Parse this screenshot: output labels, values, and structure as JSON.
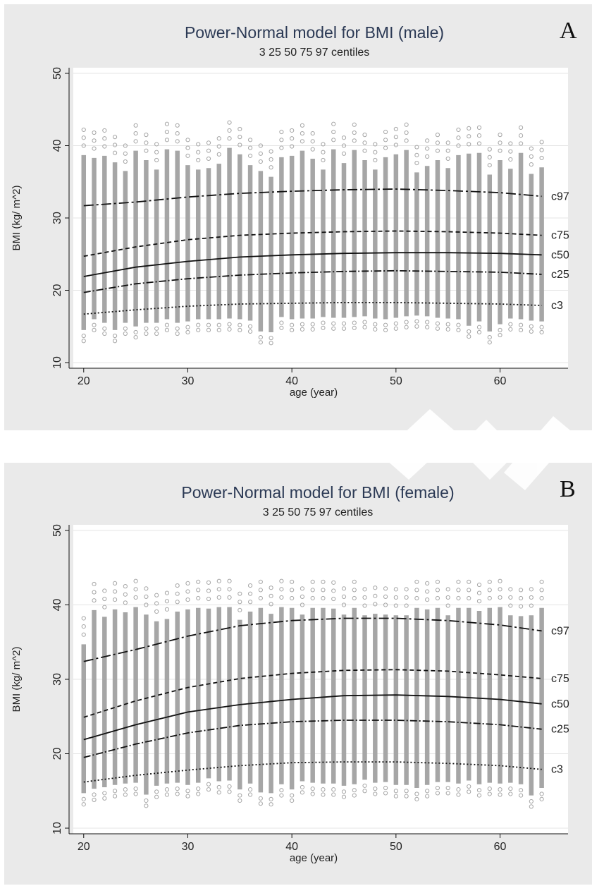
{
  "chart_data": [
    {
      "type": "scatter",
      "panel_letter": "A",
      "title": "Power-Normal model for BMI (male)",
      "subtitle": "3 25 50 75 97 centiles",
      "xlabel": "age (year)",
      "ylabel": "BMI (kg/ m^2)",
      "xlim": [
        19,
        64.5
      ],
      "ylim": [
        10,
        50
      ],
      "xticks": [
        20,
        30,
        40,
        50,
        60
      ],
      "yticks": [
        10,
        20,
        30,
        40,
        50
      ],
      "grid": true,
      "scatter_color": "#a6a6a6",
      "scatter": {
        "x_start": 20,
        "x_end": 64,
        "low": [
          13,
          14.5,
          14,
          13,
          14,
          13.5,
          14,
          14,
          14.5,
          14,
          14.2,
          14.5,
          14.5,
          14.5,
          14.6,
          14.5,
          14.3,
          12.8,
          12.7,
          14.8,
          14.5,
          14.6,
          14.6,
          14.8,
          14.7,
          14.7,
          14.8,
          14.9,
          14.6,
          14.5,
          14.7,
          14.9,
          15.0,
          14.9,
          14.7,
          14.6,
          14.5,
          13.6,
          14.2,
          12.8,
          13.8,
          14.6,
          14.5,
          14.3,
          14.2
        ],
        "high": [
          42.2,
          41.8,
          42.1,
          41.2,
          40,
          42.8,
          41.5,
          40.2,
          43,
          42.8,
          40.8,
          40.2,
          40.4,
          41,
          43.2,
          42.3,
          40.8,
          40,
          39.2,
          41.9,
          42.1,
          42.8,
          41.7,
          40.2,
          43,
          41.1,
          42.9,
          41.5,
          40.2,
          41.9,
          42.3,
          42.9,
          39.8,
          40.7,
          41.5,
          40.4,
          42.2,
          42.4,
          42.5,
          39.5,
          41.5,
          40.3,
          42.5,
          39.6,
          40.5
        ]
      },
      "centiles": [
        {
          "name": "c97",
          "x": [
            20,
            25,
            30,
            35,
            40,
            45,
            50,
            55,
            60,
            64
          ],
          "y": [
            31.7,
            32.2,
            32.9,
            33.4,
            33.7,
            33.9,
            34.0,
            33.8,
            33.5,
            33.0
          ]
        },
        {
          "name": "c75",
          "x": [
            20,
            25,
            30,
            35,
            40,
            45,
            50,
            55,
            60,
            64
          ],
          "y": [
            24.7,
            26.0,
            27.0,
            27.6,
            27.9,
            28.1,
            28.2,
            28.1,
            27.9,
            27.6
          ]
        },
        {
          "name": "c50",
          "x": [
            20,
            25,
            30,
            35,
            40,
            45,
            50,
            55,
            60,
            64
          ],
          "y": [
            21.9,
            23.2,
            24.0,
            24.6,
            24.9,
            25.1,
            25.2,
            25.2,
            25.1,
            24.9
          ]
        },
        {
          "name": "c25",
          "x": [
            20,
            25,
            30,
            35,
            40,
            45,
            50,
            55,
            60,
            64
          ],
          "y": [
            19.7,
            20.9,
            21.6,
            22.1,
            22.4,
            22.6,
            22.7,
            22.6,
            22.5,
            22.2
          ]
        },
        {
          "name": "c3",
          "x": [
            20,
            25,
            30,
            35,
            40,
            45,
            50,
            55,
            60,
            64
          ],
          "y": [
            16.7,
            17.3,
            17.8,
            18.1,
            18.2,
            18.3,
            18.3,
            18.2,
            18.1,
            17.9
          ]
        }
      ]
    },
    {
      "type": "scatter",
      "panel_letter": "B",
      "title": "Power-Normal model for BMI (female)",
      "subtitle": "3 25 50 75 97 centiles",
      "xlabel": "age (year)",
      "ylabel": "BMI (kg/ m^2)",
      "xlim": [
        19,
        64.5
      ],
      "ylim": [
        10,
        50
      ],
      "xticks": [
        20,
        30,
        40,
        50,
        60
      ],
      "yticks": [
        10,
        20,
        30,
        40,
        50
      ],
      "grid": true,
      "scatter_color": "#a6a6a6",
      "scatter": {
        "x_start": 20,
        "x_end": 64,
        "low": [
          13.2,
          13.8,
          14,
          14.3,
          14.5,
          14.6,
          13,
          14.2,
          14.5,
          14.6,
          14.3,
          14.6,
          15.2,
          14.8,
          14.9,
          13.7,
          14.5,
          13.3,
          13.2,
          14.4,
          13.7,
          14.8,
          14.6,
          14.5,
          14.5,
          14.2,
          14.4,
          15.0,
          14.6,
          14.7,
          14.3,
          14.3,
          13.9,
          14.3,
          14.7,
          14.7,
          14.5,
          14.9,
          14.4,
          14.6,
          14.5,
          14.6,
          14.4,
          12.9,
          13.9
        ],
        "high": [
          38.2,
          42.8,
          41.9,
          42.9,
          42.5,
          43.2,
          42.2,
          41.3,
          41.6,
          42.6,
          42.9,
          43.1,
          43,
          43.2,
          43.2,
          41.5,
          42.6,
          43.1,
          42.3,
          43.2,
          43.1,
          42.2,
          43.1,
          43.1,
          43,
          42.2,
          43.1,
          42.1,
          42.3,
          42.2,
          42.1,
          42.1,
          43.1,
          42.9,
          43.1,
          42.1,
          43.1,
          43.1,
          42.7,
          43.1,
          43.2,
          42.1,
          42,
          42.1,
          43.1
        ]
      },
      "centiles": [
        {
          "name": "c97",
          "x": [
            20,
            25,
            30,
            35,
            40,
            45,
            50,
            55,
            60,
            64
          ],
          "y": [
            32.4,
            34.0,
            35.8,
            37.2,
            37.9,
            38.2,
            38.2,
            37.9,
            37.3,
            36.5
          ]
        },
        {
          "name": "c75",
          "x": [
            20,
            25,
            30,
            35,
            40,
            45,
            50,
            55,
            60,
            64
          ],
          "y": [
            24.9,
            27.1,
            28.9,
            30.1,
            30.8,
            31.2,
            31.3,
            31.1,
            30.6,
            30.1
          ]
        },
        {
          "name": "c50",
          "x": [
            20,
            25,
            30,
            35,
            40,
            45,
            50,
            55,
            60,
            64
          ],
          "y": [
            21.9,
            23.9,
            25.6,
            26.6,
            27.3,
            27.8,
            27.9,
            27.7,
            27.3,
            26.7
          ]
        },
        {
          "name": "c25",
          "x": [
            20,
            25,
            30,
            35,
            40,
            45,
            50,
            55,
            60,
            64
          ],
          "y": [
            19.5,
            21.3,
            22.8,
            23.8,
            24.3,
            24.5,
            24.5,
            24.3,
            23.9,
            23.3
          ]
        },
        {
          "name": "c3",
          "x": [
            20,
            25,
            30,
            35,
            40,
            45,
            50,
            55,
            60,
            64
          ],
          "y": [
            16.2,
            17.1,
            17.8,
            18.4,
            18.8,
            18.9,
            18.9,
            18.7,
            18.4,
            17.9
          ]
        }
      ]
    }
  ]
}
